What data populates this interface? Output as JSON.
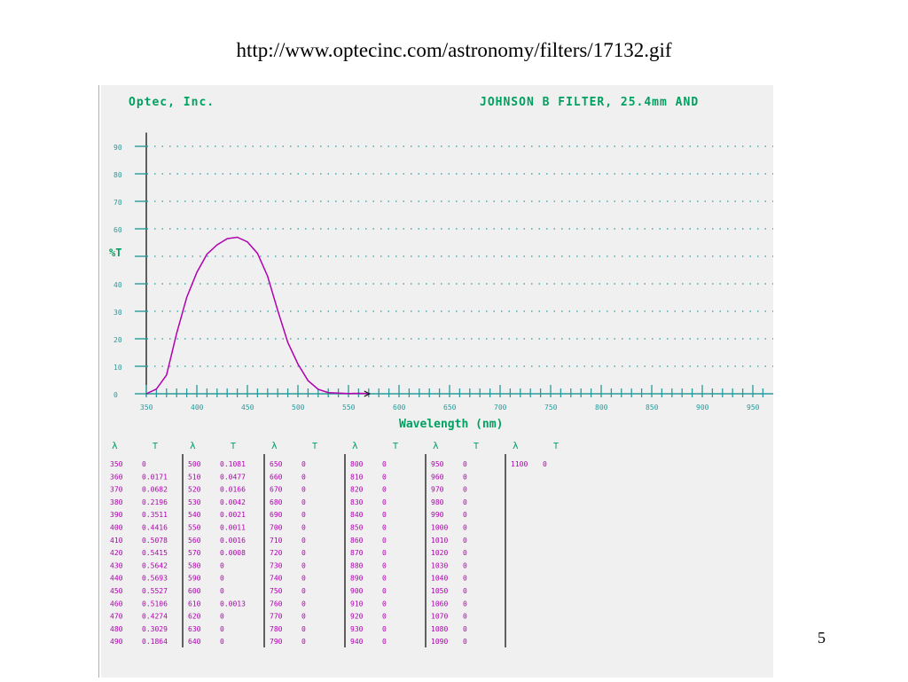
{
  "slide": {
    "title": "http://www.optecinc.com/astronomy/filters/17132.gif",
    "page_number": "5"
  },
  "figure": {
    "company": "Optec, Inc.",
    "heading": "JOHNSON B FILTER, 25.4mm AND",
    "colors": {
      "background": "#f0f0f0",
      "text": "#00a060",
      "axis": "#2a9a9a",
      "curve": "#b000b0",
      "table": "#b000b0"
    }
  },
  "chart_data": {
    "type": "line",
    "title": "JOHNSON B FILTER, 25.4mm AND",
    "xlabel": "Wavelength (nm)",
    "ylabel": "%T",
    "xlim": [
      350,
      960
    ],
    "ylim": [
      0,
      95
    ],
    "x_ticks": [
      350,
      400,
      450,
      500,
      550,
      600,
      650,
      700,
      750,
      800,
      850,
      900,
      950
    ],
    "y_ticks": [
      0,
      10,
      20,
      30,
      40,
      50,
      60,
      70,
      80,
      90
    ],
    "y_tick_labels": [
      "0",
      "10",
      "20",
      "30",
      "40",
      "",
      "60",
      "70",
      "80",
      "90"
    ],
    "grid": true,
    "series": [
      {
        "x": [
          350,
          360,
          370,
          380,
          390,
          400,
          410,
          420,
          430,
          440,
          450,
          460,
          470,
          480,
          490,
          500,
          510,
          520,
          530,
          540,
          550,
          560,
          570
        ],
        "values": [
          0,
          1.71,
          6.82,
          21.96,
          35.11,
          44.16,
          50.78,
          54.15,
          56.42,
          56.93,
          55.27,
          51.06,
          42.74,
          30.29,
          18.64,
          10.81,
          4.77,
          1.66,
          0.42,
          0.21,
          0.11,
          0.16,
          0.08
        ]
      }
    ]
  },
  "table": {
    "header_lambda": "λ",
    "header_t": "T",
    "columns": [
      {
        "rows": [
          [
            "350",
            "0"
          ],
          [
            "360",
            "0.0171"
          ],
          [
            "370",
            "0.0682"
          ],
          [
            "380",
            "0.2196"
          ],
          [
            "390",
            "0.3511"
          ],
          [
            "400",
            "0.4416"
          ],
          [
            "410",
            "0.5078"
          ],
          [
            "420",
            "0.5415"
          ],
          [
            "430",
            "0.5642"
          ],
          [
            "440",
            "0.5693"
          ],
          [
            "450",
            "0.5527"
          ],
          [
            "460",
            "0.5106"
          ],
          [
            "470",
            "0.4274"
          ],
          [
            "480",
            "0.3029"
          ],
          [
            "490",
            "0.1864"
          ]
        ]
      },
      {
        "rows": [
          [
            "500",
            "0.1081"
          ],
          [
            "510",
            "0.0477"
          ],
          [
            "520",
            "0.0166"
          ],
          [
            "530",
            "0.0042"
          ],
          [
            "540",
            "0.0021"
          ],
          [
            "550",
            "0.0011"
          ],
          [
            "560",
            "0.0016"
          ],
          [
            "570",
            "0.0008"
          ],
          [
            "580",
            "0"
          ],
          [
            "590",
            "0"
          ],
          [
            "600",
            "0"
          ],
          [
            "610",
            "0.0013"
          ],
          [
            "620",
            "0"
          ],
          [
            "630",
            "0"
          ],
          [
            "640",
            "0"
          ]
        ]
      },
      {
        "rows": [
          [
            "650",
            "0"
          ],
          [
            "660",
            "0"
          ],
          [
            "670",
            "0"
          ],
          [
            "680",
            "0"
          ],
          [
            "690",
            "0"
          ],
          [
            "700",
            "0"
          ],
          [
            "710",
            "0"
          ],
          [
            "720",
            "0"
          ],
          [
            "730",
            "0"
          ],
          [
            "740",
            "0"
          ],
          [
            "750",
            "0"
          ],
          [
            "760",
            "0"
          ],
          [
            "770",
            "0"
          ],
          [
            "780",
            "0"
          ],
          [
            "790",
            "0"
          ]
        ]
      },
      {
        "rows": [
          [
            "800",
            "0"
          ],
          [
            "810",
            "0"
          ],
          [
            "820",
            "0"
          ],
          [
            "830",
            "0"
          ],
          [
            "840",
            "0"
          ],
          [
            "850",
            "0"
          ],
          [
            "860",
            "0"
          ],
          [
            "870",
            "0"
          ],
          [
            "880",
            "0"
          ],
          [
            "890",
            "0"
          ],
          [
            "900",
            "0"
          ],
          [
            "910",
            "0"
          ],
          [
            "920",
            "0"
          ],
          [
            "930",
            "0"
          ],
          [
            "940",
            "0"
          ]
        ]
      },
      {
        "rows": [
          [
            "950",
            "0"
          ],
          [
            "960",
            "0"
          ],
          [
            "970",
            "0"
          ],
          [
            "980",
            "0"
          ],
          [
            "990",
            "0"
          ],
          [
            "1000",
            "0"
          ],
          [
            "1010",
            "0"
          ],
          [
            "1020",
            "0"
          ],
          [
            "1030",
            "0"
          ],
          [
            "1040",
            "0"
          ],
          [
            "1050",
            "0"
          ],
          [
            "1060",
            "0"
          ],
          [
            "1070",
            "0"
          ],
          [
            "1080",
            "0"
          ],
          [
            "1090",
            "0"
          ]
        ]
      },
      {
        "rows": [
          [
            "1100",
            "0"
          ]
        ]
      }
    ]
  }
}
